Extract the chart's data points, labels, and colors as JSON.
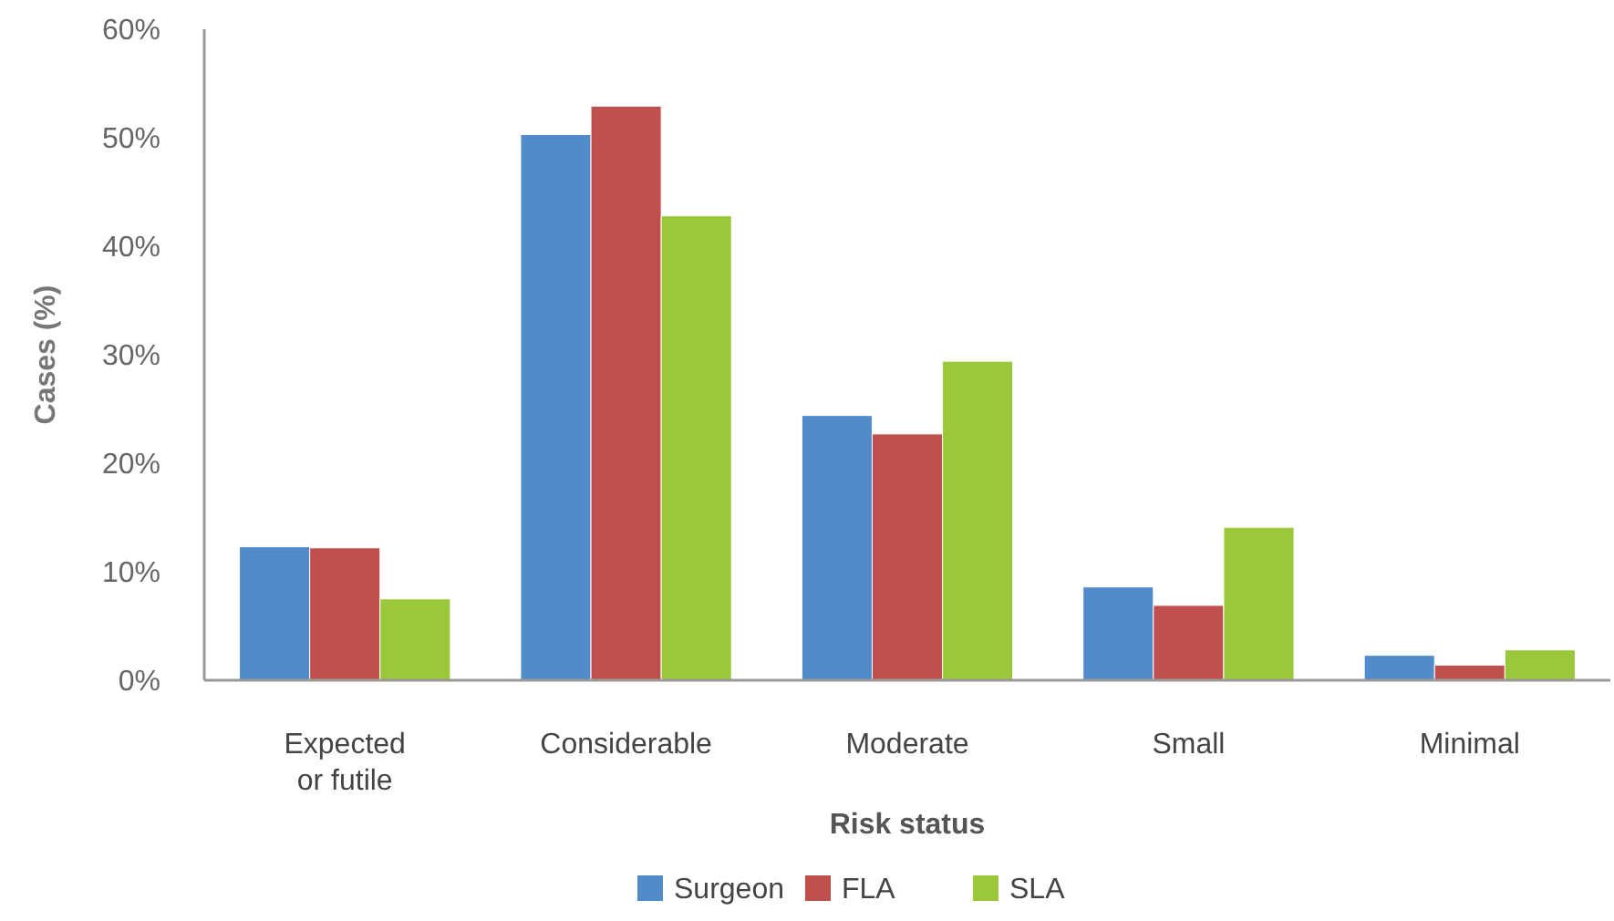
{
  "chart_data": {
    "type": "bar",
    "xlabel": "Risk status",
    "ylabel": "Cases (%)",
    "categories": [
      "Expected\nor futile",
      "Considerable",
      "Moderate",
      "Small",
      "Minimal"
    ],
    "series": [
      {
        "name": "Surgeon",
        "color": "#518bc9",
        "values": [
          12.3,
          50.3,
          24.4,
          8.6,
          2.3
        ]
      },
      {
        "name": "FLA",
        "color": "#c0504d",
        "values": [
          12.2,
          52.9,
          22.7,
          6.9,
          1.4
        ]
      },
      {
        "name": "SLA",
        "color": "#9bc83b",
        "values": [
          7.5,
          42.8,
          29.4,
          14.1,
          2.8
        ]
      }
    ],
    "ylim": [
      0,
      60
    ],
    "yticks": [
      {
        "value": 0,
        "label": "0%"
      },
      {
        "value": 10,
        "label": "10%"
      },
      {
        "value": 20,
        "label": "20%"
      },
      {
        "value": 30,
        "label": "30%"
      },
      {
        "value": 40,
        "label": "40%"
      },
      {
        "value": 50,
        "label": "50%"
      },
      {
        "value": 60,
        "label": "60%"
      }
    ],
    "grid": false,
    "legend": "bottom"
  }
}
